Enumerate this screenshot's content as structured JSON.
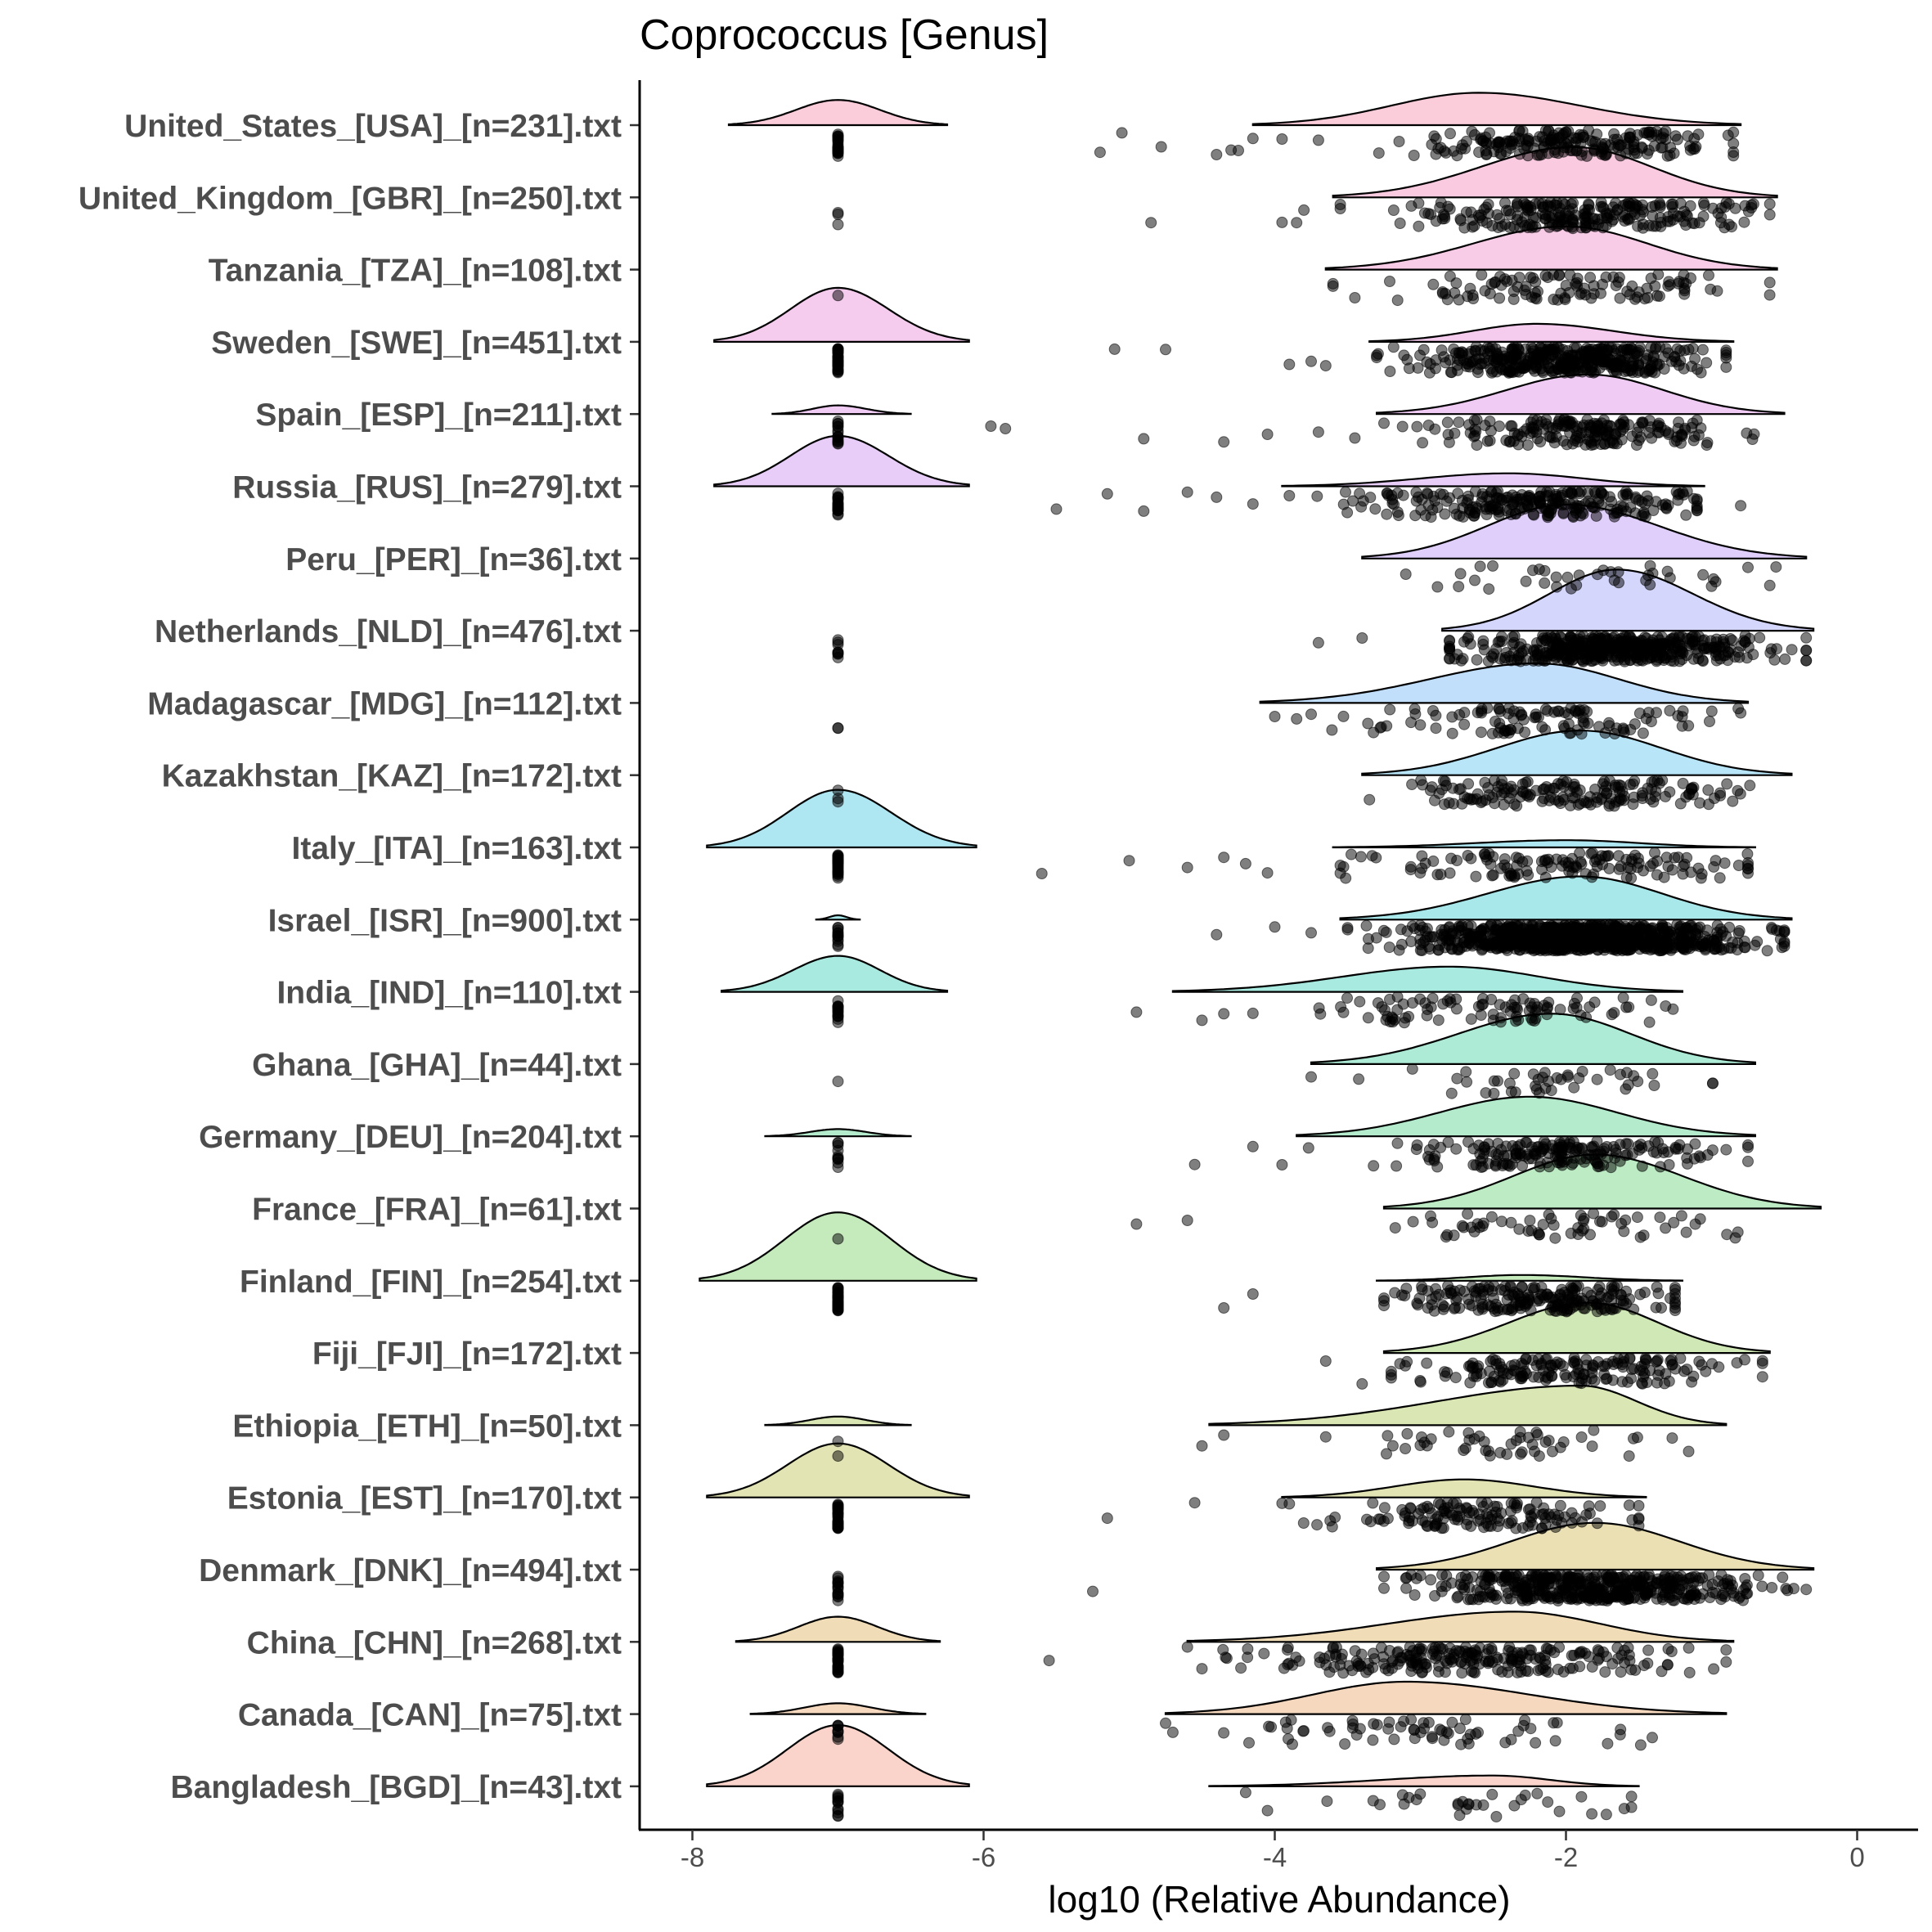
{
  "chart_data": {
    "type": "raincloud",
    "title": "Coprococcus [Genus]",
    "xlabel": "log10 (Relative Abundance)",
    "ylabel": "",
    "xlim": [
      -8.4,
      0.4
    ],
    "xticks": [
      -8,
      -6,
      -4,
      -2,
      0
    ],
    "xtick_labels": [
      "-8",
      "-6",
      "-4",
      "-2",
      "0"
    ],
    "zero_value": -7,
    "groups": [
      {
        "label": "United_States_[USA]_[n=231].txt",
        "n": 231,
        "zero_count": 24,
        "color": "#F8A3B9",
        "zero_density": {
          "min": -7.75,
          "max": -6.25,
          "height": 0.35
        },
        "nonzero_density": {
          "min": -4.15,
          "max": -0.8,
          "mode": -2.6,
          "height": 0.45
        },
        "nonzero_summary": {
          "count": 207,
          "center": -1.95,
          "spread": 0.55,
          "outliers": [
            -5.2,
            -5.05,
            -4.78,
            -4.4,
            -4.3,
            -4.25,
            -4.15,
            -3.95,
            -3.7
          ]
        }
      },
      {
        "label": "United_Kingdom_[GBR]_[n=250].txt",
        "n": 250,
        "zero_count": 3,
        "color": "#F6A1C6",
        "zero_density": null,
        "nonzero_density": {
          "min": -3.6,
          "max": -0.55,
          "mode": -1.95,
          "height": 0.7
        },
        "nonzero_summary": {
          "count": 247,
          "center": -1.85,
          "spread": 0.55,
          "outliers": [
            -4.85,
            -3.95,
            -3.85,
            -3.8
          ]
        }
      },
      {
        "label": "Tanzania_[TZA]_[n=108].txt",
        "n": 108,
        "zero_count": 1,
        "color": "#F3A0D3",
        "zero_density": null,
        "nonzero_density": {
          "min": -3.65,
          "max": -0.55,
          "mode": -2.0,
          "height": 0.6
        },
        "nonzero_summary": {
          "count": 107,
          "center": -2.0,
          "spread": 0.55,
          "outliers": [
            -3.6,
            -3.45
          ]
        }
      },
      {
        "label": "Sweden_[SWE]_[n=451].txt",
        "n": 451,
        "zero_count": 35,
        "color": "#EDA0E0",
        "zero_density": {
          "min": -7.85,
          "max": -6.1,
          "height": 0.75
        },
        "nonzero_density": {
          "min": -3.35,
          "max": -0.85,
          "mode": -2.2,
          "height": 0.25
        },
        "nonzero_summary": {
          "count": 416,
          "center": -2.05,
          "spread": 0.5,
          "outliers": [
            -5.1,
            -4.75,
            -3.9,
            -3.75,
            -3.65
          ]
        }
      },
      {
        "label": "Spain_[ESP]_[n=211].txt",
        "n": 211,
        "zero_count": 15,
        "color": "#E3A1EB",
        "zero_density": {
          "min": -7.45,
          "max": -6.5,
          "height": 0.12
        },
        "nonzero_density": {
          "min": -3.3,
          "max": -0.5,
          "mode": -1.85,
          "height": 0.55
        },
        "nonzero_summary": {
          "count": 196,
          "center": -1.9,
          "spread": 0.5,
          "outliers": [
            -5.95,
            -5.85,
            -4.9,
            -4.35,
            -4.05,
            -3.7,
            -3.45
          ]
        }
      },
      {
        "label": "Russia_[RUS]_[n=279].txt",
        "n": 279,
        "zero_count": 20,
        "color": "#D6A4F2",
        "zero_density": {
          "min": -7.85,
          "max": -6.1,
          "height": 0.7
        },
        "nonzero_density": {
          "min": -3.95,
          "max": -1.05,
          "mode": -2.4,
          "height": 0.18
        },
        "nonzero_summary": {
          "count": 259,
          "center": -2.2,
          "spread": 0.6,
          "outliers": [
            -5.5,
            -5.15,
            -4.9,
            -4.6,
            -4.4,
            -4.15,
            -0.8
          ]
        }
      },
      {
        "label": "Peru_[PER]_[n=36].txt",
        "n": 36,
        "zero_count": 0,
        "color": "#C7A8F7",
        "zero_density": null,
        "nonzero_density": {
          "min": -3.4,
          "max": -0.35,
          "mode": -2.0,
          "height": 0.75
        },
        "nonzero_summary": {
          "count": 36,
          "center": -2.0,
          "spread": 0.6,
          "outliers": [
            -3.1,
            -0.75,
            -0.6
          ]
        }
      },
      {
        "label": "Netherlands_[NLD]_[n=476].txt",
        "n": 476,
        "zero_count": 8,
        "color": "#B1B5FA",
        "zero_density": null,
        "nonzero_density": {
          "min": -2.85,
          "max": -0.3,
          "mode": -1.65,
          "height": 0.85
        },
        "nonzero_summary": {
          "count": 468,
          "center": -1.7,
          "spread": 0.5,
          "outliers": [
            -3.7,
            -3.4
          ]
        }
      },
      {
        "label": "Madagascar_[MDG]_[n=112].txt",
        "n": 112,
        "zero_count": 2,
        "color": "#8EC5F8",
        "zero_density": null,
        "nonzero_density": {
          "min": -4.1,
          "max": -0.75,
          "mode": -2.2,
          "height": 0.55
        },
        "nonzero_summary": {
          "count": 110,
          "center": -2.2,
          "spread": 0.6,
          "outliers": [
            -4.0,
            -3.85,
            -3.75
          ]
        }
      },
      {
        "label": "Kazakhstan_[KAZ]_[n=172].txt",
        "n": 172,
        "zero_count": 3,
        "color": "#7DD0F2",
        "zero_density": null,
        "nonzero_density": {
          "min": -3.4,
          "max": -0.45,
          "mode": -1.9,
          "height": 0.62
        },
        "nonzero_summary": {
          "count": 169,
          "center": -1.95,
          "spread": 0.55,
          "outliers": []
        }
      },
      {
        "label": "Italy_[ITA]_[n=163].txt",
        "n": 163,
        "zero_count": 30,
        "color": "#6CD4E8",
        "zero_density": {
          "min": -7.9,
          "max": -6.05,
          "height": 0.8
        },
        "nonzero_density": {
          "min": -3.6,
          "max": -0.7,
          "mode": -2.0,
          "height": 0.1
        },
        "nonzero_summary": {
          "count": 133,
          "center": -2.0,
          "spread": 0.7,
          "outliers": [
            -5.6,
            -5.0,
            -4.6,
            -4.35,
            -4.2,
            -4.05
          ]
        }
      },
      {
        "label": "Israel_[ISR]_[n=900].txt",
        "n": 900,
        "zero_count": 12,
        "color": "#62D6D8",
        "zero_density": {
          "min": -7.15,
          "max": -6.85,
          "height": 0.06
        },
        "nonzero_density": {
          "min": -3.55,
          "max": -0.45,
          "mode": -1.9,
          "height": 0.6
        },
        "nonzero_summary": {
          "count": 888,
          "center": -1.9,
          "spread": 0.55,
          "outliers": [
            -4.4,
            -4.0,
            -3.75
          ]
        }
      },
      {
        "label": "India_[IND]_[n=110].txt",
        "n": 110,
        "zero_count": 15,
        "color": "#63D8C6",
        "zero_density": {
          "min": -7.8,
          "max": -6.25,
          "height": 0.5
        },
        "nonzero_density": {
          "min": -4.7,
          "max": -1.2,
          "mode": -2.8,
          "height": 0.35
        },
        "nonzero_summary": {
          "count": 95,
          "center": -2.6,
          "spread": 0.55,
          "outliers": [
            -4.95,
            -4.5,
            -4.35,
            -4.15
          ]
        }
      },
      {
        "label": "Ghana_[GHA]_[n=44].txt",
        "n": 44,
        "zero_count": 1,
        "color": "#6ADAB4",
        "zero_density": null,
        "nonzero_density": {
          "min": -3.75,
          "max": -0.7,
          "mode": -2.1,
          "height": 0.7
        },
        "nonzero_summary": {
          "count": 43,
          "center": -2.1,
          "spread": 0.45,
          "outliers": [
            -3.75
          ]
        }
      },
      {
        "label": "Germany_[DEU]_[n=204].txt",
        "n": 204,
        "zero_count": 10,
        "color": "#76DBA4",
        "zero_density": {
          "min": -7.5,
          "max": -6.5,
          "height": 0.1
        },
        "nonzero_density": {
          "min": -3.85,
          "max": -0.7,
          "mode": -2.25,
          "height": 0.55
        },
        "nonzero_summary": {
          "count": 194,
          "center": -2.05,
          "spread": 0.55,
          "outliers": [
            -4.55,
            -4.15,
            -3.95
          ]
        }
      },
      {
        "label": "France_[FRA]_[n=61].txt",
        "n": 61,
        "zero_count": 1,
        "color": "#85DA94",
        "zero_density": null,
        "nonzero_density": {
          "min": -3.25,
          "max": -0.25,
          "mode": -1.8,
          "height": 0.75
        },
        "nonzero_summary": {
          "count": 60,
          "center": -2.0,
          "spread": 0.5,
          "outliers": [
            -4.95,
            -4.6,
            -3.05
          ]
        }
      },
      {
        "label": "Finland_[FIN]_[n=254].txt",
        "n": 254,
        "zero_count": 35,
        "color": "#96D985",
        "zero_density": {
          "min": -7.95,
          "max": -6.05,
          "height": 0.95
        },
        "nonzero_density": {
          "min": -3.3,
          "max": -1.2,
          "mode": -2.3,
          "height": 0.08
        },
        "nonzero_summary": {
          "count": 219,
          "center": -2.2,
          "spread": 0.55,
          "outliers": [
            -4.35,
            -4.15
          ]
        }
      },
      {
        "label": "Fiji_[FJI]_[n=172].txt",
        "n": 172,
        "zero_count": 0,
        "color": "#AAD67A",
        "zero_density": null,
        "nonzero_density": {
          "min": -3.25,
          "max": -0.6,
          "mode": -1.85,
          "height": 0.7
        },
        "nonzero_summary": {
          "count": 172,
          "center": -1.95,
          "spread": 0.5,
          "outliers": [
            -3.65,
            -3.4,
            -3.2
          ]
        }
      },
      {
        "label": "Ethiopia_[ETH]_[n=50].txt",
        "n": 50,
        "zero_count": 2,
        "color": "#BCD275",
        "zero_density": {
          "min": -7.5,
          "max": -6.5,
          "height": 0.12
        },
        "nonzero_density": {
          "min": -4.45,
          "max": -0.9,
          "mode": -1.9,
          "height": 0.55
        },
        "nonzero_summary": {
          "count": 48,
          "center": -2.2,
          "spread": 0.55,
          "outliers": [
            -4.5,
            -4.35,
            -3.65
          ]
        }
      },
      {
        "label": "Estonia_[EST]_[n=170].txt",
        "n": 170,
        "zero_count": 30,
        "color": "#CCCD74",
        "zero_density": {
          "min": -7.9,
          "max": -6.1,
          "height": 0.75
        },
        "nonzero_density": {
          "min": -3.95,
          "max": -1.45,
          "mode": -2.7,
          "height": 0.25
        },
        "nonzero_summary": {
          "count": 140,
          "center": -2.6,
          "spread": 0.5,
          "outliers": [
            -5.15,
            -4.55,
            -3.95
          ]
        }
      },
      {
        "label": "Denmark_[DNK]_[n=494].txt",
        "n": 494,
        "zero_count": 15,
        "color": "#DAC777",
        "zero_density": null,
        "nonzero_density": {
          "min": -3.3,
          "max": -0.3,
          "mode": -1.8,
          "height": 0.65
        },
        "nonzero_summary": {
          "count": 479,
          "center": -1.85,
          "spread": 0.55,
          "outliers": [
            -5.25
          ]
        }
      },
      {
        "label": "China_[CHN]_[n=268].txt",
        "n": 268,
        "zero_count": 30,
        "color": "#E5BF7E",
        "zero_density": {
          "min": -7.7,
          "max": -6.3,
          "height": 0.35
        },
        "nonzero_density": {
          "min": -4.6,
          "max": -0.85,
          "mode": -2.35,
          "height": 0.42
        },
        "nonzero_summary": {
          "count": 238,
          "center": -2.6,
          "spread": 0.75,
          "outliers": [
            -5.55,
            -4.6,
            -4.5
          ]
        }
      },
      {
        "label": "Canada_[CAN]_[n=75].txt",
        "n": 75,
        "zero_count": 8,
        "color": "#EFB88A",
        "zero_density": {
          "min": -7.6,
          "max": -6.4,
          "height": 0.15
        },
        "nonzero_density": {
          "min": -4.75,
          "max": -0.9,
          "mode": -3.1,
          "height": 0.45
        },
        "nonzero_summary": {
          "count": 67,
          "center": -2.9,
          "spread": 0.75,
          "outliers": [
            -4.75
          ]
        }
      },
      {
        "label": "Bangladesh_[BGD]_[n=43].txt",
        "n": 43,
        "zero_count": 12,
        "color": "#F5AF9F",
        "zero_density": {
          "min": -7.9,
          "max": -6.1,
          "height": 0.85
        },
        "nonzero_density": {
          "min": -4.45,
          "max": -1.5,
          "mode": -2.5,
          "height": 0.15
        },
        "nonzero_summary": {
          "count": 31,
          "center": -2.6,
          "spread": 0.55,
          "outliers": [
            -4.2,
            -4.05
          ]
        }
      }
    ]
  }
}
